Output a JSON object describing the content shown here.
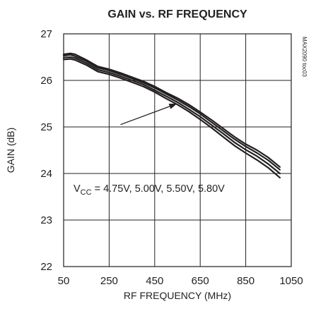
{
  "chart_data": {
    "type": "line",
    "title": "GAIN vs. RF FREQUENCY",
    "xlabel": "RF FREQUENCY (MHz)",
    "ylabel": "GAIN (dB)",
    "xlim": [
      50,
      1050
    ],
    "ylim": [
      22,
      27
    ],
    "x_ticks": [
      50,
      250,
      450,
      650,
      850,
      1050
    ],
    "y_ticks": [
      22,
      23,
      24,
      25,
      26,
      27
    ],
    "grid": true,
    "figure_id": "MAX2090 toc03",
    "annotation": {
      "prefix": "V",
      "subscript": "CC",
      "text": " = 4.75V, 5.00V, 5.50V, 5.80V",
      "arrow_from": [
        300,
        25.05
      ],
      "arrow_to": [
        548,
        25.5
      ]
    },
    "x": [
      50,
      80,
      100,
      150,
      200,
      250,
      300,
      350,
      400,
      450,
      500,
      550,
      600,
      650,
      700,
      750,
      800,
      850,
      900,
      950,
      1000
    ],
    "series": [
      {
        "values": [
          26.56,
          26.58,
          26.56,
          26.44,
          26.3,
          26.24,
          26.16,
          26.07,
          25.98,
          25.87,
          25.74,
          25.62,
          25.48,
          25.32,
          25.15,
          24.97,
          24.79,
          24.63,
          24.5,
          24.34,
          24.14
        ]
      },
      {
        "values": [
          26.53,
          26.55,
          26.52,
          26.41,
          26.27,
          26.21,
          26.13,
          26.04,
          25.95,
          25.84,
          25.71,
          25.58,
          25.44,
          25.28,
          25.1,
          24.92,
          24.74,
          24.58,
          24.44,
          24.28,
          24.08
        ]
      },
      {
        "values": [
          26.49,
          26.5,
          26.48,
          26.37,
          26.23,
          26.17,
          26.09,
          26.0,
          25.91,
          25.79,
          25.66,
          25.53,
          25.38,
          25.22,
          25.04,
          24.86,
          24.67,
          24.51,
          24.37,
          24.2,
          24.0
        ]
      },
      {
        "values": [
          26.45,
          26.46,
          26.44,
          26.33,
          26.19,
          26.13,
          26.05,
          25.96,
          25.87,
          25.75,
          25.61,
          25.48,
          25.33,
          25.16,
          24.98,
          24.79,
          24.6,
          24.44,
          24.29,
          24.12,
          23.91
        ]
      }
    ]
  }
}
